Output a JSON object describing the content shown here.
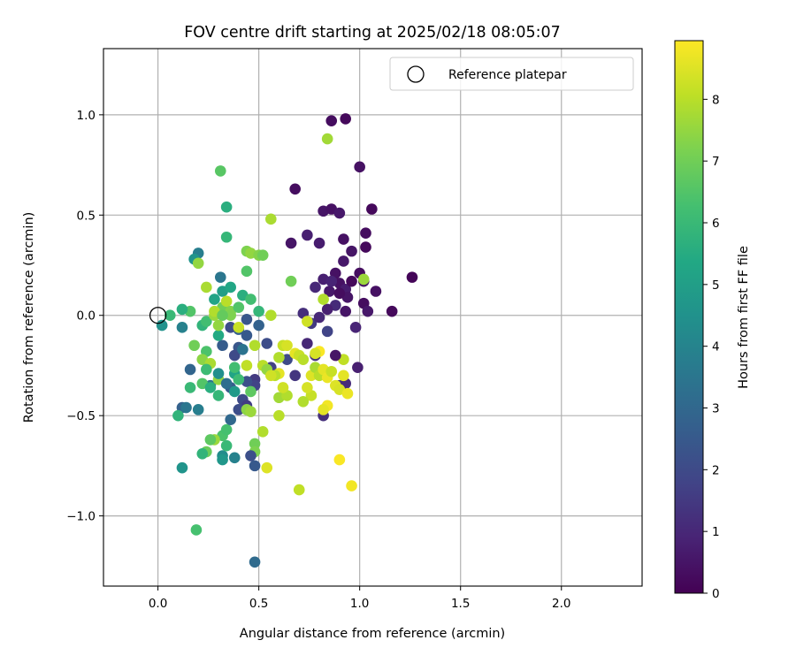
{
  "chart_data": {
    "type": "scatter",
    "title": "FOV centre drift starting at 2025/02/18 08:05:07",
    "xlabel": "Angular distance from reference (arcmin)",
    "ylabel": "Rotation from reference (arcmin)",
    "xlim": [
      -0.27,
      2.4
    ],
    "ylim": [
      -1.35,
      1.33
    ],
    "xticks": [
      0.0,
      0.5,
      1.0,
      1.5,
      2.0
    ],
    "xtick_labels": [
      "0.0",
      "0.5",
      "1.0",
      "1.5",
      "2.0"
    ],
    "yticks": [
      -1.0,
      -0.5,
      0.0,
      0.5,
      1.0
    ],
    "ytick_labels": [
      "−1.0",
      "−0.5",
      "0.0",
      "0.5",
      "1.0"
    ],
    "grid": true,
    "legend": {
      "position": "upper right",
      "entries": [
        "Reference platepar"
      ]
    },
    "reference_point": {
      "x": 0.0,
      "y": 0.0
    },
    "colorbar": {
      "label": "Hours from first FF file",
      "cmap": "viridis",
      "vmin": 0,
      "vmax": 8.95,
      "ticks": [
        0,
        1,
        2,
        3,
        4,
        5,
        6,
        7,
        8
      ],
      "tick_labels": [
        "0",
        "1",
        "2",
        "3",
        "4",
        "5",
        "6",
        "7",
        "8"
      ]
    },
    "points": [
      [
        0.86,
        0.97,
        0.3
      ],
      [
        0.93,
        0.98,
        0.2
      ],
      [
        1.0,
        0.74,
        0.4
      ],
      [
        0.68,
        0.63,
        0.3
      ],
      [
        0.82,
        0.52,
        0.5
      ],
      [
        0.86,
        0.53,
        0.4
      ],
      [
        0.9,
        0.51,
        0.6
      ],
      [
        1.06,
        0.53,
        0.2
      ],
      [
        0.74,
        0.4,
        0.8
      ],
      [
        0.66,
        0.36,
        0.5
      ],
      [
        0.8,
        0.36,
        0.7
      ],
      [
        0.92,
        0.38,
        0.4
      ],
      [
        1.03,
        0.41,
        0.3
      ],
      [
        0.96,
        0.32,
        0.5
      ],
      [
        1.03,
        0.34,
        0.2
      ],
      [
        0.92,
        0.27,
        0.6
      ],
      [
        0.88,
        0.21,
        0.4
      ],
      [
        1.0,
        0.21,
        0.3
      ],
      [
        1.02,
        0.17,
        0.5
      ],
      [
        1.26,
        0.19,
        0.1
      ],
      [
        0.82,
        0.18,
        0.8
      ],
      [
        0.78,
        0.14,
        1.0
      ],
      [
        0.85,
        0.12,
        0.6
      ],
      [
        0.9,
        0.16,
        0.4
      ],
      [
        0.93,
        0.13,
        0.7
      ],
      [
        0.94,
        0.09,
        0.5
      ],
      [
        0.88,
        0.05,
        1.1
      ],
      [
        0.84,
        0.03,
        0.8
      ],
      [
        0.93,
        0.02,
        0.5
      ],
      [
        1.02,
        0.06,
        0.3
      ],
      [
        1.04,
        0.02,
        0.6
      ],
      [
        1.08,
        0.12,
        0.4
      ],
      [
        1.16,
        0.02,
        0.2
      ],
      [
        0.72,
        0.01,
        1.2
      ],
      [
        0.76,
        -0.04,
        1.5
      ],
      [
        0.8,
        -0.01,
        1.0
      ],
      [
        0.98,
        -0.06,
        0.9
      ],
      [
        0.74,
        -0.14,
        1.0
      ],
      [
        0.78,
        -0.2,
        1.3
      ],
      [
        0.99,
        -0.26,
        0.8
      ],
      [
        0.84,
        -0.08,
        1.8
      ],
      [
        0.82,
        -0.5,
        1.2
      ],
      [
        0.9,
        -0.35,
        1.5
      ],
      [
        0.93,
        -0.34,
        1.1
      ],
      [
        0.68,
        -0.3,
        1.4
      ],
      [
        0.64,
        -0.22,
        2.0
      ],
      [
        0.56,
        -0.26,
        1.7
      ],
      [
        0.54,
        -0.14,
        2.1
      ],
      [
        0.44,
        -0.02,
        2.4
      ],
      [
        0.4,
        -0.07,
        2.7
      ],
      [
        0.36,
        -0.06,
        2.1
      ],
      [
        0.44,
        -0.1,
        2.5
      ],
      [
        0.32,
        -0.15,
        2.6
      ],
      [
        0.4,
        -0.16,
        2.4
      ],
      [
        0.38,
        -0.2,
        2.0
      ],
      [
        0.48,
        -0.32,
        1.5
      ],
      [
        0.48,
        -0.35,
        1.8
      ],
      [
        0.44,
        -0.33,
        2.2
      ],
      [
        0.42,
        -0.42,
        2.0
      ],
      [
        0.44,
        -0.45,
        1.6
      ],
      [
        0.4,
        -0.47,
        2.1
      ],
      [
        0.36,
        -0.36,
        2.6
      ],
      [
        0.26,
        -0.35,
        3.4
      ],
      [
        0.16,
        -0.27,
        2.9
      ],
      [
        0.12,
        -0.46,
        2.8
      ],
      [
        0.2,
        -0.47,
        3.8
      ],
      [
        0.12,
        -0.06,
        3.9
      ],
      [
        0.02,
        -0.05,
        4.5
      ],
      [
        0.2,
        0.31,
        3.8
      ],
      [
        0.18,
        0.28,
        4.6
      ],
      [
        0.31,
        0.19,
        3.5
      ],
      [
        0.32,
        0.12,
        5.0
      ],
      [
        0.36,
        0.14,
        5.3
      ],
      [
        0.34,
        0.54,
        5.6
      ],
      [
        0.34,
        0.39,
        5.9
      ],
      [
        0.31,
        0.72,
        6.6
      ],
      [
        0.28,
        0.08,
        5.2
      ],
      [
        0.42,
        0.1,
        5.6
      ],
      [
        0.46,
        0.08,
        6.2
      ],
      [
        0.44,
        0.22,
        6.5
      ],
      [
        0.44,
        0.32,
        7.2
      ],
      [
        0.46,
        0.31,
        7.5
      ],
      [
        0.5,
        0.3,
        7.3
      ],
      [
        0.52,
        0.3,
        7.0
      ],
      [
        0.56,
        0.48,
        7.8
      ],
      [
        0.66,
        0.17,
        7.0
      ],
      [
        0.16,
        0.02,
        6.5
      ],
      [
        0.12,
        0.03,
        5.6
      ],
      [
        0.06,
        0.0,
        6.0
      ],
      [
        0.22,
        -0.05,
        5.8
      ],
      [
        0.24,
        -0.03,
        6.2
      ],
      [
        0.2,
        0.26,
        7.5
      ],
      [
        0.24,
        0.14,
        7.8
      ],
      [
        0.28,
        0.0,
        7.6
      ],
      [
        0.32,
        0.04,
        7.0
      ],
      [
        0.34,
        0.07,
        8.0
      ],
      [
        0.36,
        0.02,
        7.3
      ],
      [
        0.4,
        0.04,
        6.5
      ],
      [
        0.5,
        0.02,
        5.9
      ],
      [
        0.56,
        0.0,
        7.9
      ],
      [
        0.3,
        -0.1,
        5.4
      ],
      [
        0.24,
        -0.18,
        6.4
      ],
      [
        0.22,
        -0.22,
        7.4
      ],
      [
        0.26,
        -0.24,
        7.8
      ],
      [
        0.24,
        -0.27,
        6.1
      ],
      [
        0.22,
        -0.34,
        6.5
      ],
      [
        0.26,
        -0.36,
        5.6
      ],
      [
        0.3,
        -0.4,
        5.9
      ],
      [
        0.16,
        -0.36,
        6.0
      ],
      [
        0.1,
        -0.5,
        5.8
      ],
      [
        0.18,
        -0.15,
        7.0
      ],
      [
        0.3,
        -0.32,
        7.5
      ],
      [
        0.38,
        -0.29,
        5.2
      ],
      [
        0.38,
        -0.38,
        4.8
      ],
      [
        0.46,
        -0.38,
        6.7
      ],
      [
        0.44,
        -0.47,
        7.4
      ],
      [
        0.46,
        -0.48,
        7.6
      ],
      [
        0.52,
        -0.58,
        7.9
      ],
      [
        0.48,
        -0.64,
        7.0
      ],
      [
        0.48,
        -0.68,
        7.2
      ],
      [
        0.46,
        -0.7,
        2.2
      ],
      [
        0.48,
        -0.75,
        2.5
      ],
      [
        0.32,
        -0.7,
        4.3
      ],
      [
        0.38,
        -0.71,
        3.9
      ],
      [
        0.32,
        -0.6,
        6.4
      ],
      [
        0.34,
        -0.65,
        6.0
      ],
      [
        0.28,
        -0.62,
        7.6
      ],
      [
        0.24,
        -0.68,
        6.9
      ],
      [
        0.26,
        -0.62,
        6.7
      ],
      [
        0.22,
        -0.69,
        5.8
      ],
      [
        0.34,
        -0.57,
        6.3
      ],
      [
        0.32,
        -0.72,
        4.7
      ],
      [
        0.12,
        -0.76,
        4.6
      ],
      [
        0.19,
        -1.07,
        6.3
      ],
      [
        0.48,
        -1.23,
        3.1
      ],
      [
        0.54,
        -0.76,
        8.5
      ],
      [
        0.6,
        -0.5,
        8.0
      ],
      [
        0.6,
        -0.41,
        7.7
      ],
      [
        0.64,
        -0.4,
        7.9
      ],
      [
        0.62,
        -0.36,
        8.3
      ],
      [
        0.6,
        -0.29,
        8.6
      ],
      [
        0.58,
        -0.3,
        8.0
      ],
      [
        0.6,
        -0.21,
        7.9
      ],
      [
        0.62,
        -0.15,
        8.2
      ],
      [
        0.64,
        -0.15,
        8.4
      ],
      [
        0.68,
        -0.19,
        8.6
      ],
      [
        0.7,
        -0.2,
        8.2
      ],
      [
        0.72,
        -0.22,
        8.0
      ],
      [
        0.76,
        -0.3,
        8.5
      ],
      [
        0.78,
        -0.26,
        7.8
      ],
      [
        0.8,
        -0.18,
        8.9
      ],
      [
        0.76,
        -0.4,
        8.2
      ],
      [
        0.72,
        -0.43,
        7.9
      ],
      [
        0.74,
        -0.36,
        8.4
      ],
      [
        0.8,
        -0.3,
        8.0
      ],
      [
        0.82,
        -0.27,
        8.6
      ],
      [
        0.84,
        -0.31,
        8.7
      ],
      [
        0.86,
        -0.28,
        8.2
      ],
      [
        0.84,
        -0.45,
        8.8
      ],
      [
        0.88,
        -0.35,
        8.5
      ],
      [
        0.9,
        -0.37,
        8.4
      ],
      [
        0.92,
        -0.3,
        8.6
      ],
      [
        0.92,
        -0.22,
        8.1
      ],
      [
        0.94,
        -0.39,
        8.7
      ],
      [
        0.82,
        -0.47,
        8.6
      ],
      [
        0.9,
        -0.72,
        8.9
      ],
      [
        0.96,
        -0.85,
        8.8
      ],
      [
        0.7,
        -0.87,
        8.1
      ],
      [
        0.74,
        -0.03,
        8.3
      ],
      [
        0.78,
        -0.19,
        8.4
      ],
      [
        0.82,
        0.08,
        7.9
      ],
      [
        0.84,
        0.88,
        7.7
      ],
      [
        1.02,
        0.18,
        7.6
      ],
      [
        0.52,
        -0.25,
        8.0
      ],
      [
        0.54,
        -0.27,
        7.5
      ],
      [
        0.56,
        -0.3,
        8.3
      ],
      [
        0.48,
        -0.15,
        7.9
      ],
      [
        0.44,
        -0.25,
        8.1
      ],
      [
        0.4,
        -0.06,
        8.2
      ],
      [
        0.36,
        0.0,
        7.2
      ],
      [
        0.3,
        -0.05,
        7.5
      ],
      [
        0.28,
        0.02,
        7.9
      ],
      [
        0.38,
        -0.26,
        6.2
      ],
      [
        0.4,
        -0.32,
        6.1
      ],
      [
        0.14,
        -0.46,
        3.5
      ],
      [
        0.36,
        -0.52,
        3.0
      ],
      [
        0.34,
        -0.34,
        3.2
      ],
      [
        0.3,
        -0.29,
        4.4
      ],
      [
        0.32,
        0.0,
        6.8
      ],
      [
        0.42,
        -0.17,
        3.4
      ],
      [
        0.5,
        -0.05,
        2.8
      ],
      [
        0.86,
        0.17,
        0.9
      ],
      [
        0.9,
        0.11,
        0.3
      ],
      [
        0.96,
        0.17,
        0.2
      ],
      [
        0.88,
        -0.2,
        0.5
      ]
    ]
  }
}
